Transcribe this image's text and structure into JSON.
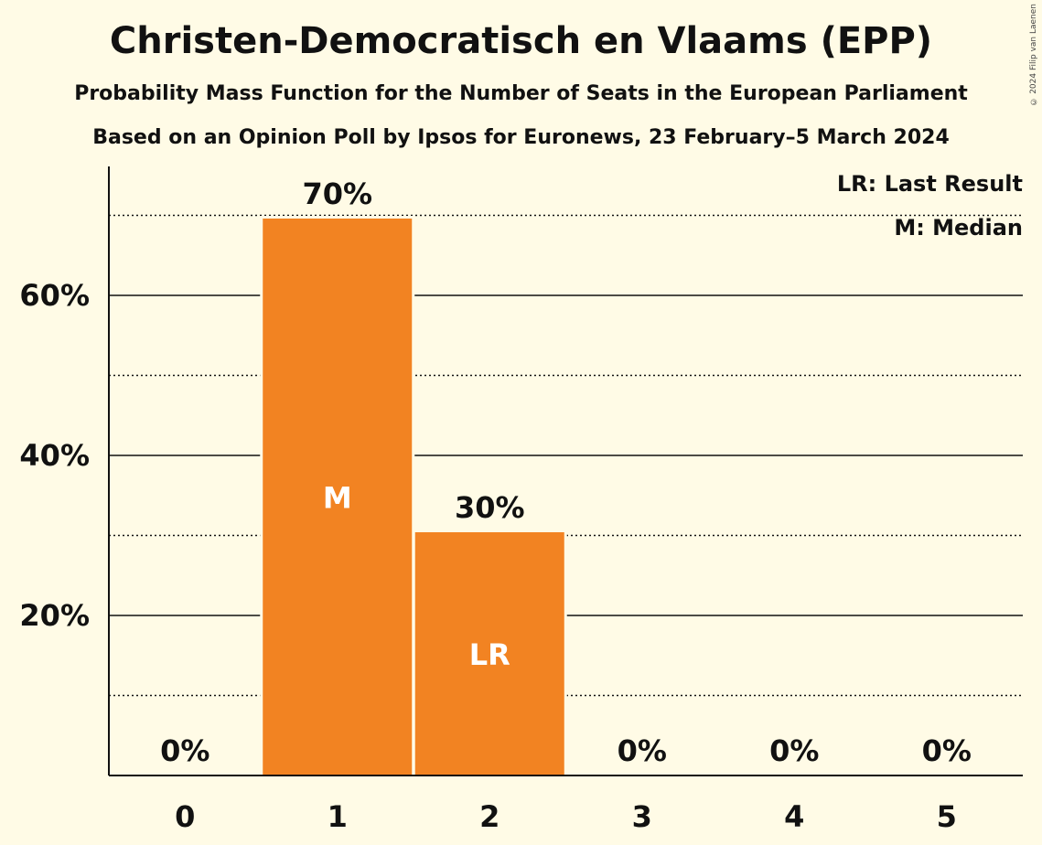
{
  "title": "Christen-Democratisch en Vlaams (EPP)",
  "subtitle": "Probability Mass Function for the Number of Seats in the European Parliament",
  "subtitle2": "Based on an Opinion Poll by Ipsos for Euronews, 23 February–5 March 2024",
  "copyright": "© 2024 Filip van Laenen",
  "legend": {
    "last_result": "LR: Last Result",
    "median": "M: Median"
  },
  "colors": {
    "background": "#FFFBE6",
    "bar": "#F28322",
    "text": "#111111"
  },
  "chart_data": {
    "type": "bar",
    "categories": [
      "0",
      "1",
      "2",
      "3",
      "4",
      "5"
    ],
    "values": [
      0,
      69.6,
      30.4,
      0,
      0,
      0
    ],
    "value_labels": [
      "0%",
      "70%",
      "30%",
      "0%",
      "0%",
      "0%"
    ],
    "inner_labels": [
      "",
      "M",
      "LR",
      "",
      "",
      ""
    ],
    "ylim": [
      0,
      75
    ],
    "y_ticks": [
      20,
      40,
      60
    ],
    "y_tick_labels": [
      "20%",
      "40%",
      "60%"
    ],
    "y_minor_lines": [
      10,
      30,
      50,
      70
    ],
    "grid": true,
    "legend_position": "top-right"
  }
}
